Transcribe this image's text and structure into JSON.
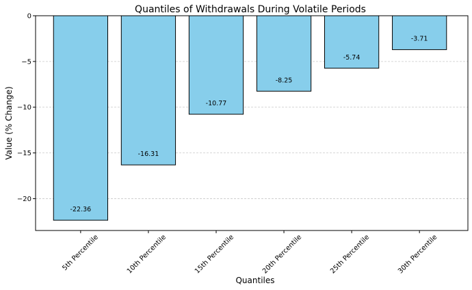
{
  "chart_data": {
    "type": "bar",
    "title": "Quantiles of Withdrawals During Volatile Periods",
    "xlabel": "Quantiles",
    "ylabel": "Value (% Change)",
    "categories": [
      "5th Percentile",
      "10th Percentile",
      "15th Percentile",
      "20th Percentile",
      "25th Percentile",
      "30th Percentile"
    ],
    "values": [
      -22.36,
      -16.31,
      -10.77,
      -8.25,
      -5.74,
      -3.71
    ],
    "value_labels": [
      "-22.36",
      "-16.31",
      "-10.77",
      "-8.25",
      "-5.74",
      "-3.71"
    ],
    "ylim": [
      -23.48,
      0
    ],
    "yticks": [
      0,
      -5,
      -10,
      -15,
      -20
    ],
    "ytick_labels": [
      "0",
      "−5",
      "−10",
      "−15",
      "−20"
    ],
    "grid": "y-dashed",
    "bar_color": "#87CEEB",
    "bar_edge_color": "#000000",
    "grid_color": "#c8c8c8"
  }
}
